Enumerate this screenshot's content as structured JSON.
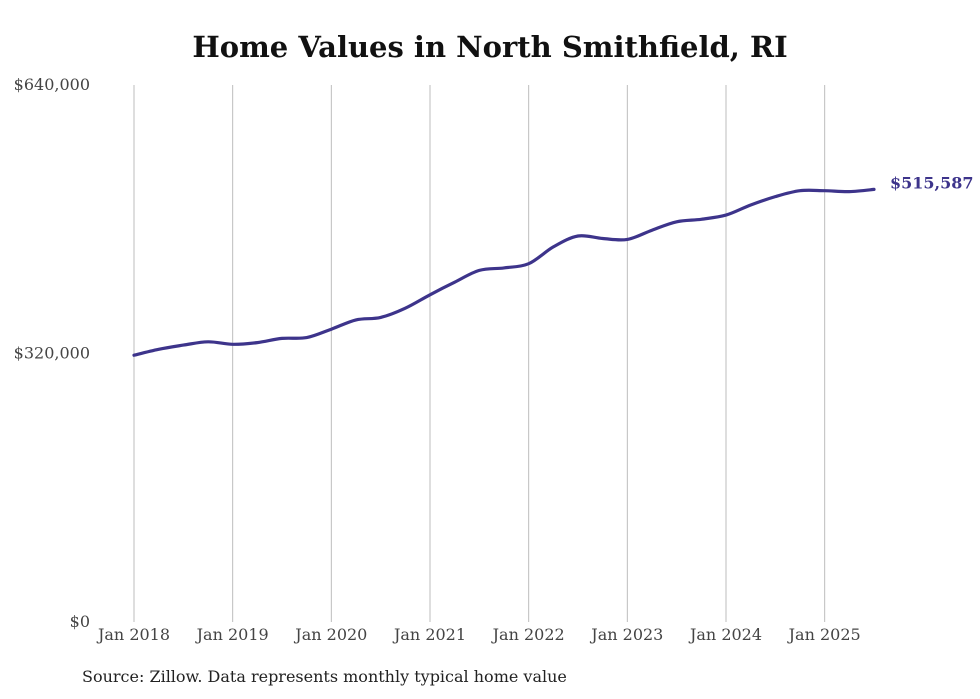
{
  "chart_data": {
    "type": "line",
    "title": "Home Values in North Smithfield, RI",
    "xlabel": "",
    "ylabel": "",
    "x_ticks": [
      "Jan 2018",
      "Jan 2019",
      "Jan 2020",
      "Jan 2021",
      "Jan 2022",
      "Jan 2023",
      "Jan 2024",
      "Jan 2025"
    ],
    "y_ticks": [
      {
        "value": 0,
        "label": "$0"
      },
      {
        "value": 320000,
        "label": "$320,000"
      },
      {
        "value": 640000,
        "label": "$640,000"
      }
    ],
    "ylim": [
      0,
      640000
    ],
    "xlim": [
      "2018-01",
      "2025-07"
    ],
    "grid": "vertical",
    "line_color": "#3d348b",
    "end_label": "$515,587",
    "series": [
      {
        "points": [
          [
            "2018-01",
            318000
          ],
          [
            "2018-04",
            325000
          ],
          [
            "2018-07",
            330000
          ],
          [
            "2018-10",
            334000
          ],
          [
            "2019-01",
            331000
          ],
          [
            "2019-04",
            333000
          ],
          [
            "2019-07",
            338000
          ],
          [
            "2019-10",
            339000
          ],
          [
            "2020-01",
            349000
          ],
          [
            "2020-04",
            360000
          ],
          [
            "2020-07",
            363000
          ],
          [
            "2020-10",
            374000
          ],
          [
            "2021-01",
            390000
          ],
          [
            "2021-04",
            405000
          ],
          [
            "2021-07",
            419000
          ],
          [
            "2021-10",
            422000
          ],
          [
            "2022-01",
            427000
          ],
          [
            "2022-04",
            447000
          ],
          [
            "2022-07",
            460000
          ],
          [
            "2022-10",
            457000
          ],
          [
            "2023-01",
            456000
          ],
          [
            "2023-04",
            467000
          ],
          [
            "2023-07",
            477000
          ],
          [
            "2023-10",
            480000
          ],
          [
            "2024-01",
            485000
          ],
          [
            "2024-04",
            497000
          ],
          [
            "2024-07",
            507000
          ],
          [
            "2024-10",
            514000
          ],
          [
            "2025-01",
            514000
          ],
          [
            "2025-04",
            513000
          ],
          [
            "2025-07",
            515587
          ]
        ]
      }
    ]
  },
  "footer": {
    "source": "Source: Zillow. Data represents monthly typical home value"
  }
}
